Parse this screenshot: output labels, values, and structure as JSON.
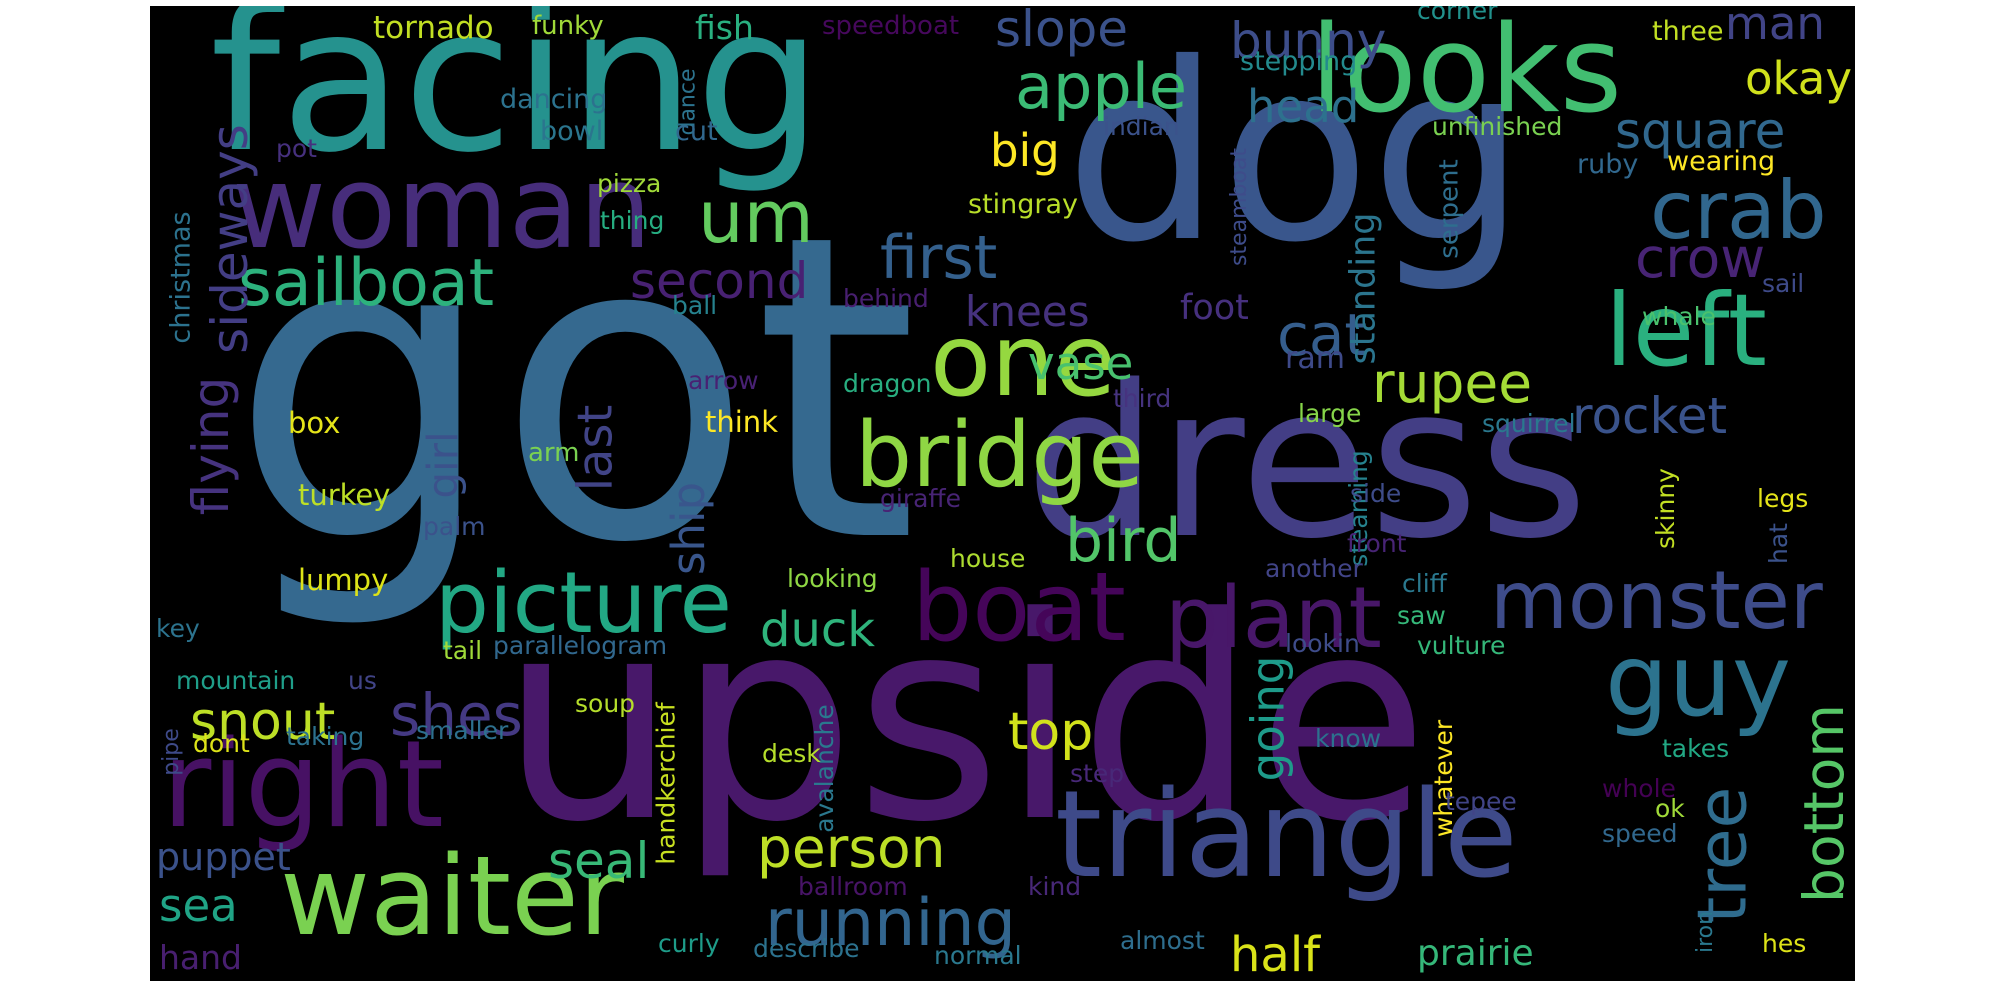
{
  "background": "#000000",
  "words": [
    {
      "text": "got",
      "color": "#35698f"
    },
    {
      "text": "upside",
      "color": "#48186a"
    },
    {
      "text": "dog",
      "color": "#39568c"
    },
    {
      "text": "facing",
      "color": "#25928e"
    },
    {
      "text": "dress",
      "color": "#433e85"
    },
    {
      "text": "looks",
      "color": "#42be71"
    },
    {
      "text": "woman",
      "color": "#472d7b"
    },
    {
      "text": "triangle",
      "color": "#3e4a89"
    },
    {
      "text": "right",
      "color": "#471164"
    },
    {
      "text": "waiter",
      "color": "#7ad151"
    },
    {
      "text": "boat",
      "color": "#450559"
    },
    {
      "text": "plant",
      "color": "#481769"
    },
    {
      "text": "picture",
      "color": "#22a884"
    },
    {
      "text": "monster",
      "color": "#3e4c8a"
    },
    {
      "text": "bridge",
      "color": "#8fd744"
    },
    {
      "text": "one",
      "color": "#95d840"
    },
    {
      "text": "left",
      "color": "#2ab07f"
    },
    {
      "text": "guy",
      "color": "#2c738e"
    },
    {
      "text": "crab",
      "color": "#31678e"
    },
    {
      "text": "sailboat",
      "color": "#2db27d"
    },
    {
      "text": "running",
      "color": "#32658e"
    },
    {
      "text": "first",
      "color": "#34608d"
    },
    {
      "text": "apple",
      "color": "#3bbb75"
    },
    {
      "text": "um",
      "color": "#63cb5f"
    },
    {
      "text": "crow",
      "color": "#482475"
    },
    {
      "text": "bird",
      "color": "#52c569"
    },
    {
      "text": "rupee",
      "color": "#a5db36"
    },
    {
      "text": "cat",
      "color": "#355e8d"
    },
    {
      "text": "person",
      "color": "#bddf26"
    },
    {
      "text": "snout",
      "color": "#bddf26"
    },
    {
      "text": "shes",
      "color": "#443983"
    },
    {
      "text": "second",
      "color": "#482173"
    },
    {
      "text": "bunny",
      "color": "#3d4d8a"
    },
    {
      "text": "slope",
      "color": "#3b528b"
    },
    {
      "text": "square",
      "color": "#31688e"
    },
    {
      "text": "rocket",
      "color": "#3a538b"
    },
    {
      "text": "vase",
      "color": "#48c16e"
    },
    {
      "text": "man",
      "color": "#414487"
    },
    {
      "text": "half",
      "color": "#dae319"
    },
    {
      "text": "top",
      "color": "#d2e21b"
    },
    {
      "text": "seal",
      "color": "#38b977"
    },
    {
      "text": "duck",
      "color": "#2fb47c"
    },
    {
      "text": "tree",
      "color": "#2f6c8e"
    },
    {
      "text": "bottom",
      "color": "#56c667"
    },
    {
      "text": "head",
      "color": "#2d718e"
    },
    {
      "text": "okay",
      "color": "#d0e11c"
    },
    {
      "text": "knees",
      "color": "#46327e"
    },
    {
      "text": "going",
      "color": "#1e9b8a"
    },
    {
      "text": "big",
      "color": "#fde725"
    },
    {
      "text": "sideways",
      "color": "#433e85"
    },
    {
      "text": "flying",
      "color": "#46337f"
    },
    {
      "text": "sea",
      "color": "#20a486"
    },
    {
      "text": "puppet",
      "color": "#3b528b"
    },
    {
      "text": "prairie",
      "color": "#35b779"
    },
    {
      "text": "girl",
      "color": "#3b528b"
    },
    {
      "text": "last",
      "color": "#414487"
    },
    {
      "text": "ship",
      "color": "#39568c"
    },
    {
      "text": "foot",
      "color": "#46307e"
    },
    {
      "text": "standing",
      "color": "#2b758e"
    },
    {
      "text": "tornado",
      "color": "#c2df23"
    },
    {
      "text": "fish",
      "color": "#29af7f"
    },
    {
      "text": "hand",
      "color": "#481f70"
    },
    {
      "text": "ram",
      "color": "#3e4a89"
    },
    {
      "text": "lumpy",
      "color": "#dde318"
    },
    {
      "text": "turkey",
      "color": "#bddf26"
    },
    {
      "text": "think",
      "color": "#fde725"
    },
    {
      "text": "box",
      "color": "#e5e419"
    },
    {
      "text": "arm",
      "color": "#7ad151"
    },
    {
      "text": "christmas",
      "color": "#2c728e"
    },
    {
      "text": "funky",
      "color": "#a0da39"
    },
    {
      "text": "speedboat",
      "color": "#46085c"
    },
    {
      "text": "corner",
      "color": "#21918c"
    },
    {
      "text": "three",
      "color": "#c2df23"
    },
    {
      "text": "stepping",
      "color": "#238a8d"
    },
    {
      "text": "dancing",
      "color": "#2c728e"
    },
    {
      "text": "dance",
      "color": "#2c738e"
    },
    {
      "text": "bowl",
      "color": "#2b758e"
    },
    {
      "text": "cut",
      "color": "#31688e"
    },
    {
      "text": "indian",
      "color": "#3b528b"
    },
    {
      "text": "unfinished",
      "color": "#7ad151"
    },
    {
      "text": "ruby",
      "color": "#31688e"
    },
    {
      "text": "wearing",
      "color": "#fde725"
    },
    {
      "text": "pot",
      "color": "#46307e"
    },
    {
      "text": "pizza",
      "color": "#a0da39"
    },
    {
      "text": "thing",
      "color": "#26ad81"
    },
    {
      "text": "stingray",
      "color": "#b8de29"
    },
    {
      "text": "steamboat",
      "color": "#3e4c8a"
    },
    {
      "text": "serpent",
      "color": "#2e6e8e"
    },
    {
      "text": "sail",
      "color": "#3e4a89"
    },
    {
      "text": "whale",
      "color": "#4ac16d"
    },
    {
      "text": "behind",
      "color": "#481f70"
    },
    {
      "text": "ball",
      "color": "#26828e"
    },
    {
      "text": "dragon",
      "color": "#28ae80"
    },
    {
      "text": "arrow",
      "color": "#482173"
    },
    {
      "text": "third",
      "color": "#46337f"
    },
    {
      "text": "large",
      "color": "#86d549"
    },
    {
      "text": "squirrel",
      "color": "#2a788e"
    },
    {
      "text": "giraffe",
      "color": "#482475"
    },
    {
      "text": "steaming",
      "color": "#26828e"
    },
    {
      "text": "skinny",
      "color": "#c2df23"
    },
    {
      "text": "side",
      "color": "#3e4c8a"
    },
    {
      "text": "legs",
      "color": "#e5e419"
    },
    {
      "text": "palm",
      "color": "#3b528b"
    },
    {
      "text": "hat",
      "color": "#3b528b"
    },
    {
      "text": "house",
      "color": "#addc30"
    },
    {
      "text": "another",
      "color": "#414487"
    },
    {
      "text": "front",
      "color": "#482475"
    },
    {
      "text": "looking",
      "color": "#8fd744"
    },
    {
      "text": "cliff",
      "color": "#2a788e"
    },
    {
      "text": "saw",
      "color": "#35b779"
    },
    {
      "text": "key",
      "color": "#2c738e"
    },
    {
      "text": "tail",
      "color": "#a0da39"
    },
    {
      "text": "parallelogram",
      "color": "#31688e"
    },
    {
      "text": "lookin",
      "color": "#3e4c8a"
    },
    {
      "text": "vulture",
      "color": "#35b779"
    },
    {
      "text": "mountain",
      "color": "#1f9e89"
    },
    {
      "text": "us",
      "color": "#414487"
    },
    {
      "text": "soup",
      "color": "#b5de2b"
    },
    {
      "text": "handkerchief",
      "color": "#c8e020"
    },
    {
      "text": "avalanche",
      "color": "#2a788e"
    },
    {
      "text": "know",
      "color": "#2c728e"
    },
    {
      "text": "whatever",
      "color": "#fde725"
    },
    {
      "text": "takes",
      "color": "#22a884"
    },
    {
      "text": "pipe",
      "color": "#3e4a89"
    },
    {
      "text": "dont",
      "color": "#dde318"
    },
    {
      "text": "taking",
      "color": "#2c728e"
    },
    {
      "text": "smaller",
      "color": "#2d708e"
    },
    {
      "text": "desk",
      "color": "#b5de2b"
    },
    {
      "text": "step",
      "color": "#482878"
    },
    {
      "text": "tepee",
      "color": "#414487"
    },
    {
      "text": "whole",
      "color": "#440154"
    },
    {
      "text": "ok",
      "color": "#a0da39"
    },
    {
      "text": "speed",
      "color": "#31688e"
    },
    {
      "text": "ballroom",
      "color": "#481467"
    },
    {
      "text": "kind",
      "color": "#482878"
    },
    {
      "text": "curly",
      "color": "#1e9c89"
    },
    {
      "text": "describe",
      "color": "#2c728e"
    },
    {
      "text": "normal",
      "color": "#2a788e"
    },
    {
      "text": "almost",
      "color": "#2e6e8e"
    },
    {
      "text": "iron",
      "color": "#2a788e"
    },
    {
      "text": "hes",
      "color": "#dde318"
    }
  ]
}
